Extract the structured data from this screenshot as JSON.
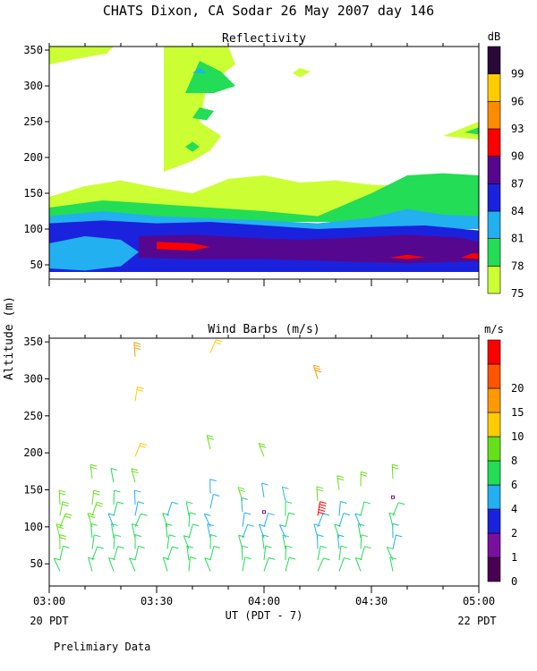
{
  "header": {
    "title": "CHATS Dixon, CA  Sodar  26 May 2007  day 146",
    "footer_note": "Prelimiary Data"
  },
  "axes_text": {
    "ylabel": "Altitude  (m)",
    "xlabel": "UT  (PDT - 7)",
    "x_left_note": "20 PDT",
    "x_right_note": "22 PDT"
  },
  "chart_data": [
    {
      "type": "heatmap",
      "title": "Reflectivity",
      "colorbar_label": "dB",
      "x_ticks": [
        "03:00",
        "03:30",
        "04:00",
        "04:30",
        "05:00"
      ],
      "y_ticks": [
        50,
        100,
        150,
        200,
        250,
        300,
        350
      ],
      "ylim": [
        30,
        355
      ],
      "xlim_minutes_after_0300": [
        0,
        120
      ],
      "color_levels": [
        75,
        78,
        81,
        84,
        87,
        90,
        93,
        96,
        99
      ],
      "level_colors": [
        "#ccff33",
        "#22dd55",
        "#22b0f0",
        "#1a22dd",
        "#55088f",
        "#ff0000",
        "#ff8c00",
        "#ffcc00",
        "#2a0838"
      ],
      "description_bands": [
        {
          "layer": "84-87 dB core",
          "altitude_range": [
            50,
            110
          ]
        },
        {
          "layer": "87-90 dB",
          "altitude_range": [
            60,
            95
          ]
        },
        {
          "layer": "90 dB patches",
          "altitude_range": [
            60,
            85
          ]
        },
        {
          "layer": "78-84 dB",
          "altitude_range": [
            100,
            180
          ]
        },
        {
          "layer": "75 dB plumes",
          "altitude_range": [
            120,
            355
          ]
        }
      ]
    },
    {
      "type": "scatter",
      "title": "Wind Barbs (m/s)",
      "colorbar_label": "m/s",
      "x_ticks": [
        "03:00",
        "03:30",
        "04:00",
        "04:30",
        "05:00"
      ],
      "y_ticks": [
        50,
        100,
        150,
        200,
        250,
        300,
        350
      ],
      "ylim": [
        20,
        355
      ],
      "color_levels": [
        0,
        1,
        2,
        4,
        6,
        8,
        10,
        15,
        20
      ],
      "level_colors": [
        "#4a0050",
        "#7a10a0",
        "#1a22dd",
        "#22b0f0",
        "#22dd55",
        "#66e01a",
        "#ffcc00",
        "#ff9900",
        "#ff5500",
        "#ff0000"
      ],
      "barbs": [
        {
          "t": 3,
          "alt": 40,
          "speed": 5
        },
        {
          "t": 3,
          "alt": 55,
          "speed": 5
        },
        {
          "t": 3,
          "alt": 70,
          "speed": 6
        },
        {
          "t": 3,
          "alt": 85,
          "speed": 6
        },
        {
          "t": 3,
          "alt": 100,
          "speed": 6
        },
        {
          "t": 3,
          "alt": 115,
          "speed": 6
        },
        {
          "t": 3,
          "alt": 130,
          "speed": 6
        },
        {
          "t": 12,
          "alt": 40,
          "speed": 5
        },
        {
          "t": 12,
          "alt": 55,
          "speed": 4
        },
        {
          "t": 12,
          "alt": 70,
          "speed": 4
        },
        {
          "t": 12,
          "alt": 85,
          "speed": 5
        },
        {
          "t": 12,
          "alt": 100,
          "speed": 6
        },
        {
          "t": 12,
          "alt": 115,
          "speed": 6
        },
        {
          "t": 12,
          "alt": 130,
          "speed": 6
        },
        {
          "t": 12,
          "alt": 165,
          "speed": 6
        },
        {
          "t": 18,
          "alt": 40,
          "speed": 4
        },
        {
          "t": 18,
          "alt": 55,
          "speed": 4
        },
        {
          "t": 18,
          "alt": 70,
          "speed": 5
        },
        {
          "t": 18,
          "alt": 85,
          "speed": 5
        },
        {
          "t": 18,
          "alt": 100,
          "speed": 3
        },
        {
          "t": 18,
          "alt": 115,
          "speed": 5
        },
        {
          "t": 18,
          "alt": 130,
          "speed": 4
        },
        {
          "t": 18,
          "alt": 160,
          "speed": 5
        },
        {
          "t": 24,
          "alt": 40,
          "speed": 5
        },
        {
          "t": 24,
          "alt": 55,
          "speed": 5
        },
        {
          "t": 24,
          "alt": 70,
          "speed": 4
        },
        {
          "t": 24,
          "alt": 85,
          "speed": 5
        },
        {
          "t": 24,
          "alt": 100,
          "speed": 5
        },
        {
          "t": 24,
          "alt": 115,
          "speed": 3
        },
        {
          "t": 24,
          "alt": 130,
          "speed": 2
        },
        {
          "t": 24,
          "alt": 160,
          "speed": 6
        },
        {
          "t": 24,
          "alt": 195,
          "speed": 9
        },
        {
          "t": 24,
          "alt": 270,
          "speed": 9
        },
        {
          "t": 24,
          "alt": 330,
          "speed": 11
        },
        {
          "t": 33,
          "alt": 40,
          "speed": 5
        },
        {
          "t": 33,
          "alt": 55,
          "speed": 5
        },
        {
          "t": 33,
          "alt": 70,
          "speed": 5
        },
        {
          "t": 33,
          "alt": 85,
          "speed": 4
        },
        {
          "t": 33,
          "alt": 100,
          "speed": 4
        },
        {
          "t": 33,
          "alt": 115,
          "speed": 3
        },
        {
          "t": 39,
          "alt": 40,
          "speed": 4
        },
        {
          "t": 39,
          "alt": 55,
          "speed": 5
        },
        {
          "t": 39,
          "alt": 70,
          "speed": 5
        },
        {
          "t": 39,
          "alt": 85,
          "speed": 4
        },
        {
          "t": 39,
          "alt": 100,
          "speed": 4
        },
        {
          "t": 39,
          "alt": 115,
          "speed": 4
        },
        {
          "t": 45,
          "alt": 40,
          "speed": 4
        },
        {
          "t": 45,
          "alt": 55,
          "speed": 4
        },
        {
          "t": 45,
          "alt": 70,
          "speed": 4
        },
        {
          "t": 45,
          "alt": 85,
          "speed": 3
        },
        {
          "t": 45,
          "alt": 100,
          "speed": 2
        },
        {
          "t": 45,
          "alt": 125,
          "speed": 3
        },
        {
          "t": 45,
          "alt": 145,
          "speed": 3
        },
        {
          "t": 45,
          "alt": 205,
          "speed": 7
        },
        {
          "t": 45,
          "alt": 335,
          "speed": 9
        },
        {
          "t": 54,
          "alt": 40,
          "speed": 5
        },
        {
          "t": 54,
          "alt": 55,
          "speed": 4
        },
        {
          "t": 54,
          "alt": 70,
          "speed": 4
        },
        {
          "t": 54,
          "alt": 85,
          "speed": 3
        },
        {
          "t": 54,
          "alt": 100,
          "speed": 2
        },
        {
          "t": 54,
          "alt": 120,
          "speed": 2
        },
        {
          "t": 54,
          "alt": 135,
          "speed": 6
        },
        {
          "t": 60,
          "alt": 40,
          "speed": 4
        },
        {
          "t": 60,
          "alt": 55,
          "speed": 4
        },
        {
          "t": 60,
          "alt": 70,
          "speed": 4
        },
        {
          "t": 60,
          "alt": 85,
          "speed": 3
        },
        {
          "t": 60,
          "alt": 100,
          "speed": 2
        },
        {
          "t": 60,
          "alt": 120,
          "speed": 0
        },
        {
          "t": 60,
          "alt": 140,
          "speed": 2
        },
        {
          "t": 60,
          "alt": 195,
          "speed": 6
        },
        {
          "t": 66,
          "alt": 40,
          "speed": 4
        },
        {
          "t": 66,
          "alt": 55,
          "speed": 5
        },
        {
          "t": 66,
          "alt": 70,
          "speed": 4
        },
        {
          "t": 66,
          "alt": 85,
          "speed": 3
        },
        {
          "t": 66,
          "alt": 100,
          "speed": 4
        },
        {
          "t": 66,
          "alt": 115,
          "speed": 4
        },
        {
          "t": 66,
          "alt": 135,
          "speed": 3
        },
        {
          "t": 75,
          "alt": 40,
          "speed": 5
        },
        {
          "t": 75,
          "alt": 55,
          "speed": 5
        },
        {
          "t": 75,
          "alt": 70,
          "speed": 3
        },
        {
          "t": 75,
          "alt": 85,
          "speed": 3
        },
        {
          "t": 75,
          "alt": 100,
          "speed": 2
        },
        {
          "t": 75,
          "alt": 115,
          "speed": 20
        },
        {
          "t": 75,
          "alt": 135,
          "speed": 6
        },
        {
          "t": 75,
          "alt": 300,
          "speed": 11
        },
        {
          "t": 81,
          "alt": 40,
          "speed": 4
        },
        {
          "t": 81,
          "alt": 55,
          "speed": 4
        },
        {
          "t": 81,
          "alt": 70,
          "speed": 3
        },
        {
          "t": 81,
          "alt": 85,
          "speed": 4
        },
        {
          "t": 81,
          "alt": 100,
          "speed": 3
        },
        {
          "t": 81,
          "alt": 115,
          "speed": 2
        },
        {
          "t": 81,
          "alt": 150,
          "speed": 6
        },
        {
          "t": 87,
          "alt": 40,
          "speed": 5
        },
        {
          "t": 87,
          "alt": 55,
          "speed": 5
        },
        {
          "t": 87,
          "alt": 70,
          "speed": 4
        },
        {
          "t": 87,
          "alt": 85,
          "speed": 4
        },
        {
          "t": 87,
          "alt": 100,
          "speed": 3
        },
        {
          "t": 87,
          "alt": 115,
          "speed": 4
        },
        {
          "t": 87,
          "alt": 155,
          "speed": 6
        },
        {
          "t": 96,
          "alt": 40,
          "speed": 4
        },
        {
          "t": 96,
          "alt": 55,
          "speed": 4
        },
        {
          "t": 96,
          "alt": 70,
          "speed": 3
        },
        {
          "t": 96,
          "alt": 85,
          "speed": 3
        },
        {
          "t": 96,
          "alt": 100,
          "speed": 4
        },
        {
          "t": 96,
          "alt": 115,
          "speed": 4
        },
        {
          "t": 96,
          "alt": 140,
          "speed": 0
        },
        {
          "t": 96,
          "alt": 165,
          "speed": 6
        }
      ]
    }
  ]
}
